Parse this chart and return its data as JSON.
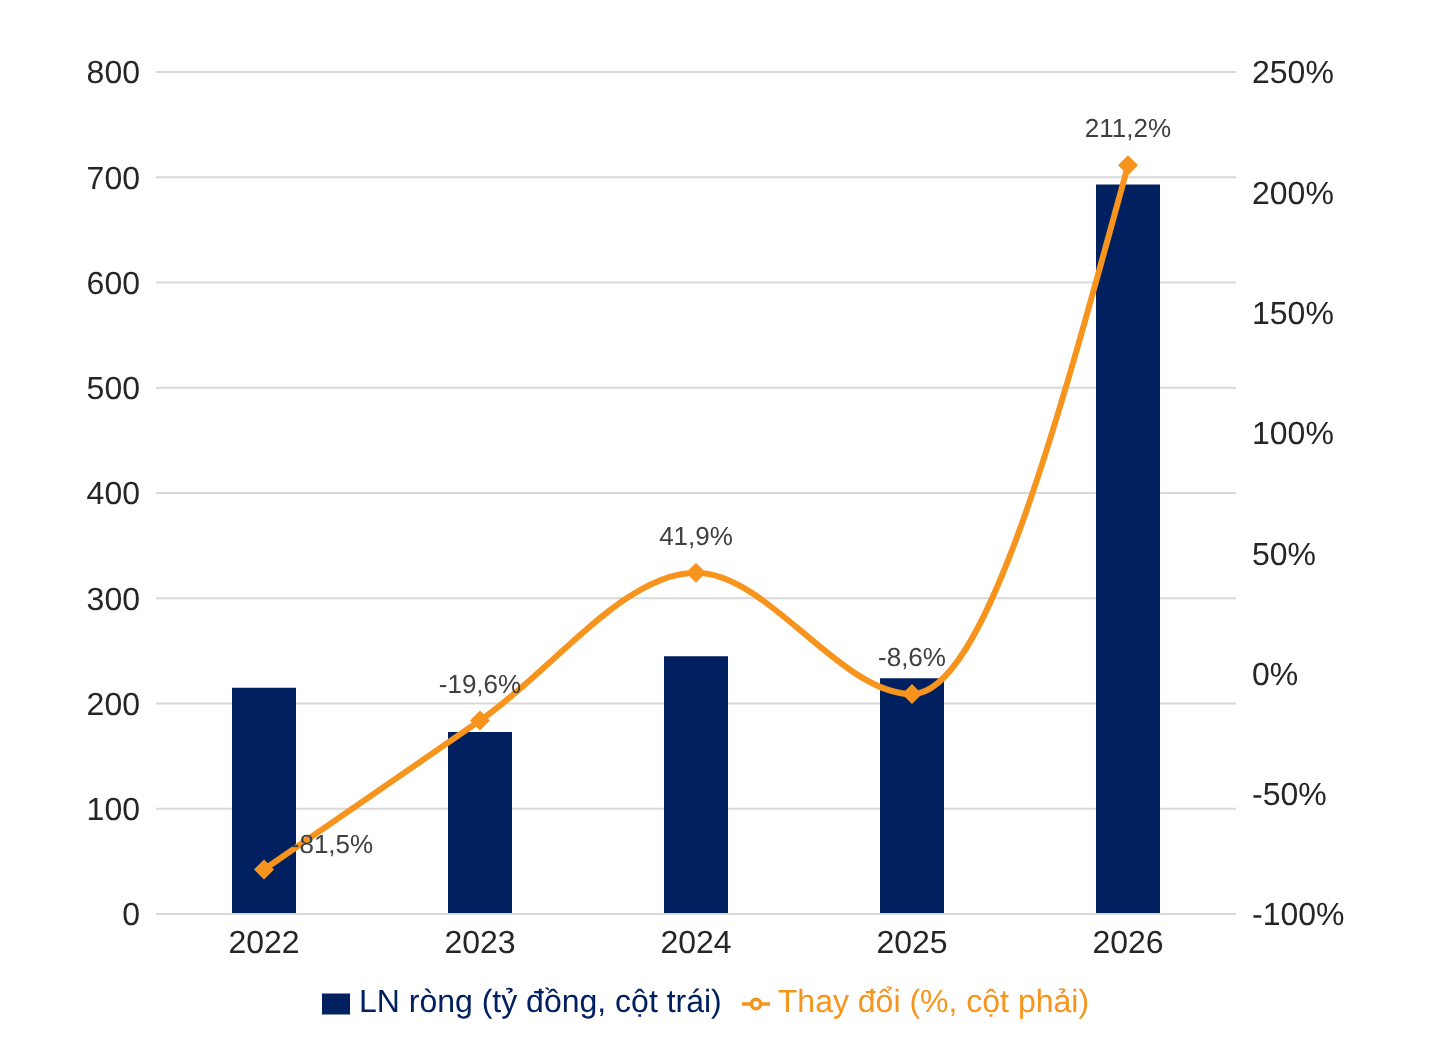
{
  "chart_data": {
    "type": "bar",
    "categories": [
      "2022",
      "2023",
      "2024",
      "2025",
      "2026"
    ],
    "series": [
      {
        "name": "LN ròng (tỷ đồng, cột trái)",
        "color": "#002060",
        "values": [
          215,
          173,
          245,
          224,
          693
        ]
      },
      {
        "name": "Thay đổi (%, cột phải)",
        "type": "line",
        "axis": "y2",
        "color": "#f7941d",
        "values": [
          -81.5,
          -19.6,
          41.9,
          -8.6,
          211.2
        ],
        "value_labels": [
          "-81,5%",
          "-19,6%",
          "41,9%",
          "-8,6%",
          "211,2%"
        ]
      }
    ],
    "ylim": [
      0,
      800
    ],
    "yticks": [
      0,
      100,
      200,
      300,
      400,
      500,
      600,
      700,
      800
    ],
    "y2lim": [
      -100,
      250
    ],
    "y2ticks": [
      {
        "value": -100,
        "label": "-100%"
      },
      {
        "value": -50,
        "label": "-50%"
      },
      {
        "value": 0,
        "label": "0%"
      },
      {
        "value": 50,
        "label": "50%"
      },
      {
        "value": 100,
        "label": "100%"
      },
      {
        "value": 150,
        "label": "150%"
      },
      {
        "value": 200,
        "label": "200%"
      },
      {
        "value": 250,
        "label": "250%"
      }
    ],
    "grid": "y",
    "legend": "bottom",
    "marker": "diamond"
  }
}
